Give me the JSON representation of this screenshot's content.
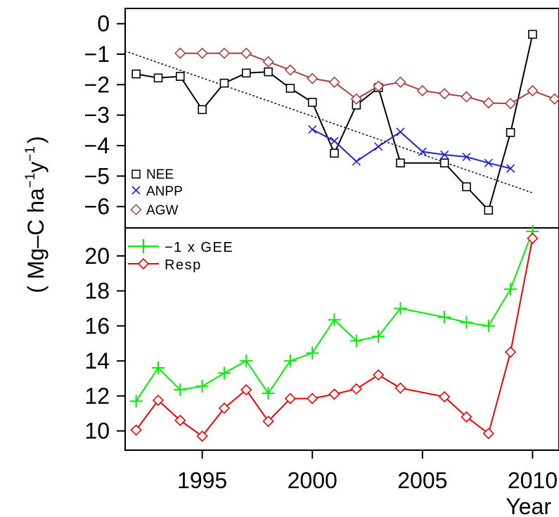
{
  "y_axis_label": {
    "prefix": "( Mg–C ha",
    "sup1": "−1",
    "mid": "y",
    "sup2": "−1",
    "suffix": ")"
  },
  "colors": {
    "NEE": "#000000",
    "ANPP": "#2222dd",
    "AGW": "#a8403f",
    "GEE": "#00ee00",
    "Resp": "#ee0000",
    "trend": "#000000"
  },
  "chart_data": [
    {
      "type": "line",
      "panel": "top",
      "ylim": [
        -6.7,
        0.5
      ],
      "xlim": [
        1991.5,
        2011.2
      ],
      "y_ticks": [
        0,
        -1,
        -2,
        -3,
        -4,
        -5,
        -6
      ],
      "y_tick_labels": [
        "0",
        "−1",
        "−2",
        "−3",
        "−4",
        "−5",
        "−6"
      ],
      "legend_position": "bottom-left",
      "series": [
        {
          "name": "NEE",
          "marker": "square",
          "color_key": "NEE",
          "segments": [
            {
              "x": [
                1992,
                1993,
                1994,
                1995,
                1996,
                1997,
                1998,
                1999,
                2000,
                2001,
                2002,
                2003,
                2004
              ],
              "y": [
                -1.65,
                -1.78,
                -1.73,
                -2.82,
                -1.95,
                -1.62,
                -1.58,
                -2.12,
                -2.58,
                -4.25,
                -2.67,
                -2.1,
                -4.57
              ]
            },
            {
              "x": [
                2006,
                2007,
                2008,
                2009,
                2010
              ],
              "y": [
                -4.57,
                -5.35,
                -6.12,
                -3.57,
                -0.35
              ]
            }
          ],
          "connect_gap": {
            "x": [
              2004,
              2006
            ],
            "y": [
              -4.57,
              -4.57
            ]
          }
        },
        {
          "name": "ANPP",
          "marker": "x",
          "color_key": "ANPP",
          "segments": [
            {
              "x": [
                2000,
                2001,
                2002,
                2003,
                2004,
                2005,
                2006,
                2007,
                2008,
                2009
              ],
              "y": [
                -3.47,
                -3.85,
                -4.52,
                -4.03,
                -3.55,
                -4.2,
                -4.3,
                -4.37,
                -4.57,
                -4.75
              ]
            }
          ]
        },
        {
          "name": "AGW",
          "marker": "diamond",
          "color_key": "AGW",
          "segments": [
            {
              "x": [
                1994,
                1995,
                1996,
                1997,
                1998,
                1999,
                2000,
                2001,
                2002,
                2003,
                2004,
                2005,
                2006,
                2007,
                2008,
                2009,
                2010,
                2011
              ],
              "y": [
                -0.97,
                -0.97,
                -0.97,
                -0.97,
                -1.25,
                -1.52,
                -1.8,
                -1.92,
                -2.47,
                -2.05,
                -1.92,
                -2.2,
                -2.3,
                -2.4,
                -2.6,
                -2.62,
                -2.2,
                -2.47
              ]
            }
          ]
        }
      ],
      "trend": {
        "x": [
          1991.5,
          2010
        ],
        "y": [
          -0.9,
          -5.55
        ]
      }
    },
    {
      "type": "line",
      "panel": "bottom",
      "ylim": [
        8.9,
        21.6
      ],
      "xlim": [
        1991.5,
        2011.2
      ],
      "y_ticks": [
        10,
        12,
        14,
        16,
        18,
        20
      ],
      "y_tick_labels": [
        "10",
        "12",
        "14",
        "16",
        "18",
        "20"
      ],
      "x_ticks": [
        1995,
        2000,
        2005,
        2010
      ],
      "x_tick_labels": [
        "1995",
        "2000",
        "2005",
        "2010"
      ],
      "xlabel": "Year",
      "legend_position": "top-left",
      "series": [
        {
          "name": "−1 x GEE",
          "marker": "plus",
          "color_key": "GEE",
          "segments": [
            {
              "x": [
                1992,
                1993,
                1994,
                1995,
                1996,
                1997,
                1998,
                1999,
                2000,
                2001,
                2002,
                2003,
                2004,
                2006,
                2007,
                2008,
                2009,
                2010
              ],
              "y": [
                11.7,
                13.6,
                12.35,
                12.55,
                13.3,
                14.0,
                12.15,
                14.0,
                14.45,
                16.35,
                15.15,
                15.4,
                17.0,
                16.5,
                16.2,
                16.0,
                18.1,
                21.4
              ]
            }
          ]
        },
        {
          "name": "Resp",
          "marker": "diamond",
          "color_key": "Resp",
          "segments": [
            {
              "x": [
                1992,
                1993,
                1994,
                1995,
                1996,
                1997,
                1998,
                1999,
                2000,
                2001,
                2002,
                2003,
                2004,
                2006,
                2007,
                2008,
                2009,
                2010
              ],
              "y": [
                10.05,
                11.75,
                10.6,
                9.7,
                11.3,
                12.35,
                10.55,
                11.85,
                11.85,
                12.1,
                12.4,
                13.2,
                12.45,
                11.95,
                10.8,
                9.85,
                14.5,
                21.0
              ]
            }
          ]
        }
      ]
    }
  ]
}
